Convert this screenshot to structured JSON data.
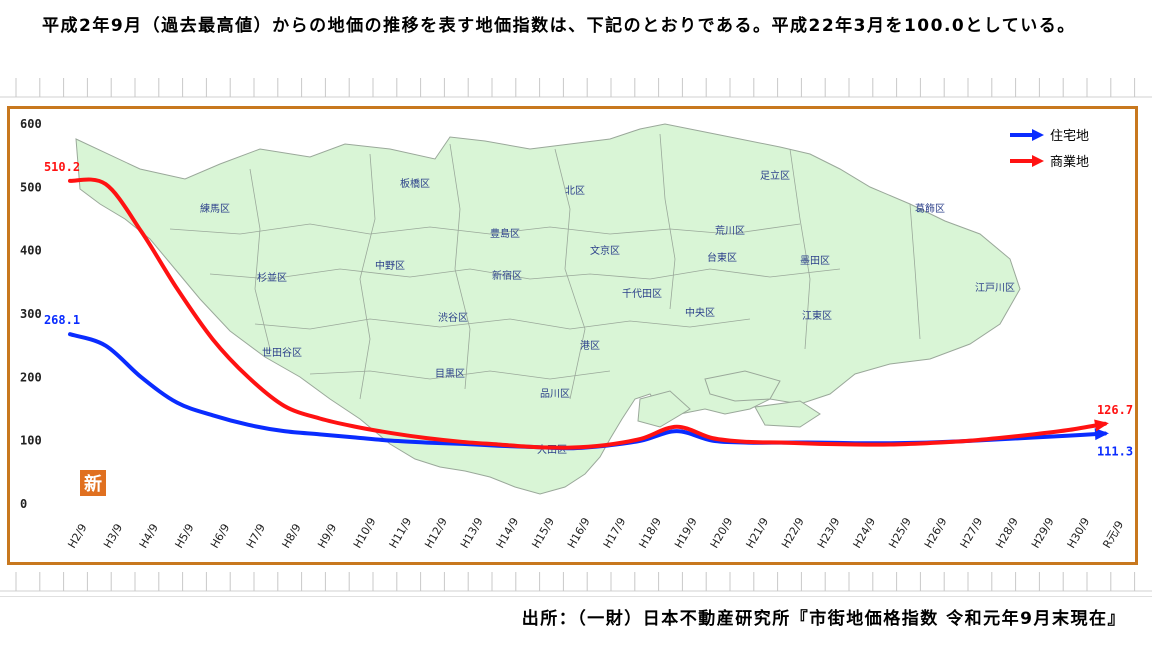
{
  "intro_text": "平成2年9月（過去最高値）からの地価の推移を表す地価指数は、下記のとおりである。平成22年3月を100.0としている。",
  "source_text": "出所：（一財）日本不動産研究所『市街地価格指数 令和元年9月末現在』",
  "new_badge": "新",
  "colors": {
    "frame": "#c8781e",
    "map_fill": "#d9f5d6",
    "map_stroke": "#9aa89a",
    "residential": "#0a2cff",
    "commercial": "#ff1212",
    "badge": "#e07020"
  },
  "ward_labels": [
    "練馬区",
    "板橋区",
    "北区",
    "足立区",
    "葛飾区",
    "豊島区",
    "文京区",
    "荒川区",
    "台東区",
    "墨田区",
    "江戸川区",
    "杉並区",
    "中野区",
    "新宿区",
    "千代田区",
    "渋谷区",
    "中央区",
    "江東区",
    "世田谷区",
    "港区",
    "目黒区",
    "品川区",
    "大田区"
  ],
  "chart_data": {
    "type": "line",
    "title": "",
    "xlabel": "",
    "ylabel": "",
    "ylim": [
      0,
      600
    ],
    "yticks": [
      0,
      100,
      200,
      300,
      400,
      500,
      600
    ],
    "grid": false,
    "legend_position": "top-right",
    "categories": [
      "H2/9",
      "H3/9",
      "H4/9",
      "H5/9",
      "H6/9",
      "H7/9",
      "H8/9",
      "H9/9",
      "H10/9",
      "H11/9",
      "H12/9",
      "H13/9",
      "H14/9",
      "H15/9",
      "H16/9",
      "H17/9",
      "H18/9",
      "H19/9",
      "H20/9",
      "H21/9",
      "H22/9",
      "H23/9",
      "H24/9",
      "H25/9",
      "H26/9",
      "H27/9",
      "H28/9",
      "H29/9",
      "H30/9",
      "R元/9"
    ],
    "series": [
      {
        "name": "住宅地",
        "color": "#0a2cff",
        "start_label": "268.1",
        "end_label": "111.3",
        "values": [
          268.1,
          250,
          200,
          160,
          140,
          125,
          115,
          110,
          105,
          100,
          97,
          95,
          92,
          90,
          88,
          92,
          100,
          115,
          100,
          97,
          97,
          97,
          96,
          96,
          97,
          99,
          102,
          105,
          108,
          111.3
        ]
      },
      {
        "name": "商業地",
        "color": "#ff1212",
        "start_label": "510.2",
        "end_label": "126.7",
        "values": [
          510.2,
          505,
          430,
          340,
          260,
          200,
          155,
          135,
          122,
          112,
          104,
          98,
          94,
          90,
          89,
          93,
          103,
          122,
          104,
          98,
          97,
          95,
          94,
          94,
          96,
          99,
          104,
          110,
          117,
          126.7
        ]
      }
    ]
  }
}
